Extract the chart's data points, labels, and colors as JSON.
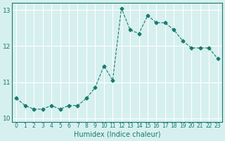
{
  "x": [
    0,
    1,
    2,
    3,
    4,
    5,
    6,
    7,
    8,
    9,
    10,
    11,
    12,
    13,
    14,
    15,
    16,
    17,
    18,
    19,
    20,
    21,
    22,
    23
  ],
  "y": [
    10.55,
    10.35,
    10.25,
    10.25,
    10.35,
    10.25,
    10.35,
    10.35,
    10.55,
    10.85,
    11.45,
    11.05,
    13.05,
    12.45,
    12.35,
    12.85,
    12.65,
    12.65,
    12.45,
    12.15,
    11.95,
    11.95,
    11.95,
    11.65
  ],
  "xlabel": "Humidex (Indice chaleur)",
  "ylim": [
    9.9,
    13.2
  ],
  "xlim": [
    -0.5,
    23.5
  ],
  "yticks": [
    10,
    11,
    12,
    13
  ],
  "xticks": [
    0,
    1,
    2,
    3,
    4,
    5,
    6,
    7,
    8,
    9,
    10,
    11,
    12,
    13,
    14,
    15,
    16,
    17,
    18,
    19,
    20,
    21,
    22,
    23
  ],
  "line_color": "#1a7a6e",
  "marker": "D",
  "marker_size": 2.5,
  "line_width": 0.8,
  "bg_color": "#d6f0ef",
  "grid_color": "#ffffff"
}
